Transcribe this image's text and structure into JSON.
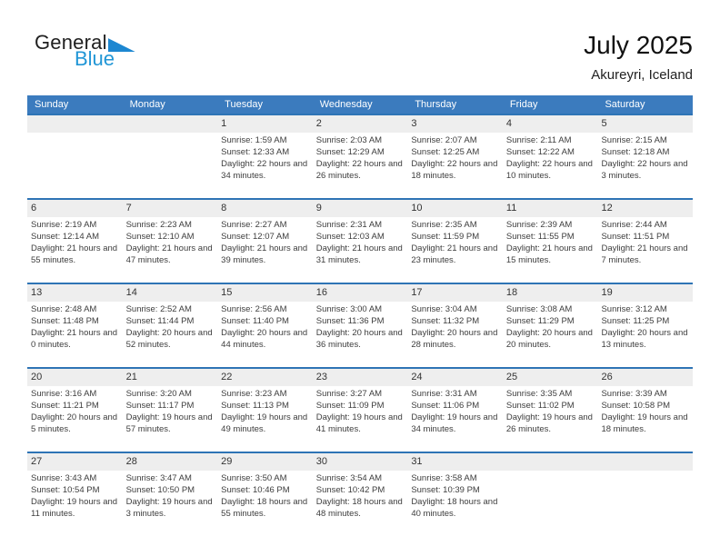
{
  "logo": {
    "general": "General",
    "blue": "Blue"
  },
  "header": {
    "title": "July 2025",
    "subtitle": "Akureyri, Iceland"
  },
  "colors": {
    "header_bar": "#3b7bbe",
    "row_separator": "#2e74b5",
    "number_strip": "#eeeeee",
    "logo_blue": "#2196d6",
    "logo_triangle": "#1d87d1"
  },
  "weekdays": [
    "Sunday",
    "Monday",
    "Tuesday",
    "Wednesday",
    "Thursday",
    "Friday",
    "Saturday"
  ],
  "weeks": [
    [
      null,
      null,
      {
        "day": "1",
        "sunrise": "Sunrise: 1:59 AM",
        "sunset": "Sunset: 12:33 AM",
        "daylight": "Daylight: 22 hours and 34 minutes."
      },
      {
        "day": "2",
        "sunrise": "Sunrise: 2:03 AM",
        "sunset": "Sunset: 12:29 AM",
        "daylight": "Daylight: 22 hours and 26 minutes."
      },
      {
        "day": "3",
        "sunrise": "Sunrise: 2:07 AM",
        "sunset": "Sunset: 12:25 AM",
        "daylight": "Daylight: 22 hours and 18 minutes."
      },
      {
        "day": "4",
        "sunrise": "Sunrise: 2:11 AM",
        "sunset": "Sunset: 12:22 AM",
        "daylight": "Daylight: 22 hours and 10 minutes."
      },
      {
        "day": "5",
        "sunrise": "Sunrise: 2:15 AM",
        "sunset": "Sunset: 12:18 AM",
        "daylight": "Daylight: 22 hours and 3 minutes."
      }
    ],
    [
      {
        "day": "6",
        "sunrise": "Sunrise: 2:19 AM",
        "sunset": "Sunset: 12:14 AM",
        "daylight": "Daylight: 21 hours and 55 minutes."
      },
      {
        "day": "7",
        "sunrise": "Sunrise: 2:23 AM",
        "sunset": "Sunset: 12:10 AM",
        "daylight": "Daylight: 21 hours and 47 minutes."
      },
      {
        "day": "8",
        "sunrise": "Sunrise: 2:27 AM",
        "sunset": "Sunset: 12:07 AM",
        "daylight": "Daylight: 21 hours and 39 minutes."
      },
      {
        "day": "9",
        "sunrise": "Sunrise: 2:31 AM",
        "sunset": "Sunset: 12:03 AM",
        "daylight": "Daylight: 21 hours and 31 minutes."
      },
      {
        "day": "10",
        "sunrise": "Sunrise: 2:35 AM",
        "sunset": "Sunset: 11:59 PM",
        "daylight": "Daylight: 21 hours and 23 minutes."
      },
      {
        "day": "11",
        "sunrise": "Sunrise: 2:39 AM",
        "sunset": "Sunset: 11:55 PM",
        "daylight": "Daylight: 21 hours and 15 minutes."
      },
      {
        "day": "12",
        "sunrise": "Sunrise: 2:44 AM",
        "sunset": "Sunset: 11:51 PM",
        "daylight": "Daylight: 21 hours and 7 minutes."
      }
    ],
    [
      {
        "day": "13",
        "sunrise": "Sunrise: 2:48 AM",
        "sunset": "Sunset: 11:48 PM",
        "daylight": "Daylight: 21 hours and 0 minutes."
      },
      {
        "day": "14",
        "sunrise": "Sunrise: 2:52 AM",
        "sunset": "Sunset: 11:44 PM",
        "daylight": "Daylight: 20 hours and 52 minutes."
      },
      {
        "day": "15",
        "sunrise": "Sunrise: 2:56 AM",
        "sunset": "Sunset: 11:40 PM",
        "daylight": "Daylight: 20 hours and 44 minutes."
      },
      {
        "day": "16",
        "sunrise": "Sunrise: 3:00 AM",
        "sunset": "Sunset: 11:36 PM",
        "daylight": "Daylight: 20 hours and 36 minutes."
      },
      {
        "day": "17",
        "sunrise": "Sunrise: 3:04 AM",
        "sunset": "Sunset: 11:32 PM",
        "daylight": "Daylight: 20 hours and 28 minutes."
      },
      {
        "day": "18",
        "sunrise": "Sunrise: 3:08 AM",
        "sunset": "Sunset: 11:29 PM",
        "daylight": "Daylight: 20 hours and 20 minutes."
      },
      {
        "day": "19",
        "sunrise": "Sunrise: 3:12 AM",
        "sunset": "Sunset: 11:25 PM",
        "daylight": "Daylight: 20 hours and 13 minutes."
      }
    ],
    [
      {
        "day": "20",
        "sunrise": "Sunrise: 3:16 AM",
        "sunset": "Sunset: 11:21 PM",
        "daylight": "Daylight: 20 hours and 5 minutes."
      },
      {
        "day": "21",
        "sunrise": "Sunrise: 3:20 AM",
        "sunset": "Sunset: 11:17 PM",
        "daylight": "Daylight: 19 hours and 57 minutes."
      },
      {
        "day": "22",
        "sunrise": "Sunrise: 3:23 AM",
        "sunset": "Sunset: 11:13 PM",
        "daylight": "Daylight: 19 hours and 49 minutes."
      },
      {
        "day": "23",
        "sunrise": "Sunrise: 3:27 AM",
        "sunset": "Sunset: 11:09 PM",
        "daylight": "Daylight: 19 hours and 41 minutes."
      },
      {
        "day": "24",
        "sunrise": "Sunrise: 3:31 AM",
        "sunset": "Sunset: 11:06 PM",
        "daylight": "Daylight: 19 hours and 34 minutes."
      },
      {
        "day": "25",
        "sunrise": "Sunrise: 3:35 AM",
        "sunset": "Sunset: 11:02 PM",
        "daylight": "Daylight: 19 hours and 26 minutes."
      },
      {
        "day": "26",
        "sunrise": "Sunrise: 3:39 AM",
        "sunset": "Sunset: 10:58 PM",
        "daylight": "Daylight: 19 hours and 18 minutes."
      }
    ],
    [
      {
        "day": "27",
        "sunrise": "Sunrise: 3:43 AM",
        "sunset": "Sunset: 10:54 PM",
        "daylight": "Daylight: 19 hours and 11 minutes."
      },
      {
        "day": "28",
        "sunrise": "Sunrise: 3:47 AM",
        "sunset": "Sunset: 10:50 PM",
        "daylight": "Daylight: 19 hours and 3 minutes."
      },
      {
        "day": "29",
        "sunrise": "Sunrise: 3:50 AM",
        "sunset": "Sunset: 10:46 PM",
        "daylight": "Daylight: 18 hours and 55 minutes."
      },
      {
        "day": "30",
        "sunrise": "Sunrise: 3:54 AM",
        "sunset": "Sunset: 10:42 PM",
        "daylight": "Daylight: 18 hours and 48 minutes."
      },
      {
        "day": "31",
        "sunrise": "Sunrise: 3:58 AM",
        "sunset": "Sunset: 10:39 PM",
        "daylight": "Daylight: 18 hours and 40 minutes."
      },
      null,
      null
    ]
  ]
}
